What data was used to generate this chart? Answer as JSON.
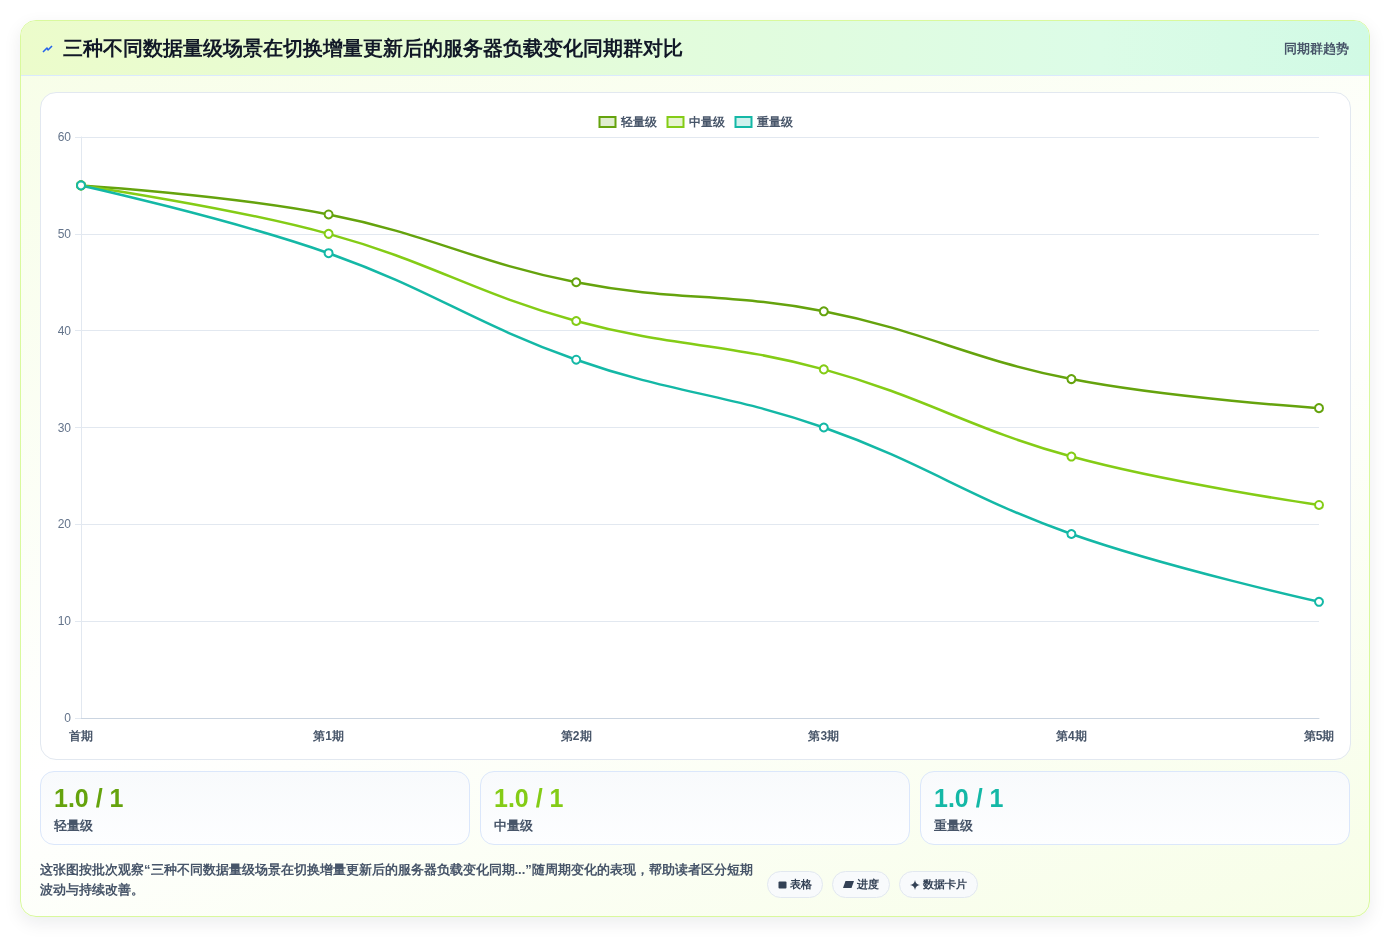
{
  "chart_data": [
    {
      "type": "line",
      "title": "三种不同数据量级场景在切换增量更新后的服务器负载变化同期群对比",
      "subtitle": "同期群趋势",
      "categories": [
        "首期",
        "第1期",
        "第2期",
        "第3期",
        "第4期",
        "第5期"
      ],
      "series": [
        {
          "name": "轻量级",
          "color": "#65a30d",
          "values": [
            55,
            52,
            45,
            42,
            35,
            32
          ]
        },
        {
          "name": "中量级",
          "color": "#84cc16",
          "values": [
            55,
            50,
            41,
            36,
            27,
            22
          ]
        },
        {
          "name": "重量级",
          "color": "#14b8a6",
          "values": [
            55,
            48,
            37,
            30,
            19,
            12
          ]
        }
      ],
      "ylim": [
        0,
        60
      ],
      "yticks": [
        0,
        10,
        20,
        30,
        40,
        50,
        60
      ],
      "grid": "y",
      "legend": "top",
      "marker": "circle",
      "line_style": "solid"
    },
    {
      "type": "other",
      "annotations": [
        "1.0 / 1",
        "轻量级",
        "1.0 / 1",
        "中量级",
        "1.0 / 1",
        "重量级",
        "这张图按批次观察“三种不同数据量级场景在切换增量更新后的服务器负载变化同期...”随周期变化的表现，帮助读者区分短期波动与持续改善。",
        "表格",
        "进度",
        "数据卡片"
      ]
    }
  ]
}
